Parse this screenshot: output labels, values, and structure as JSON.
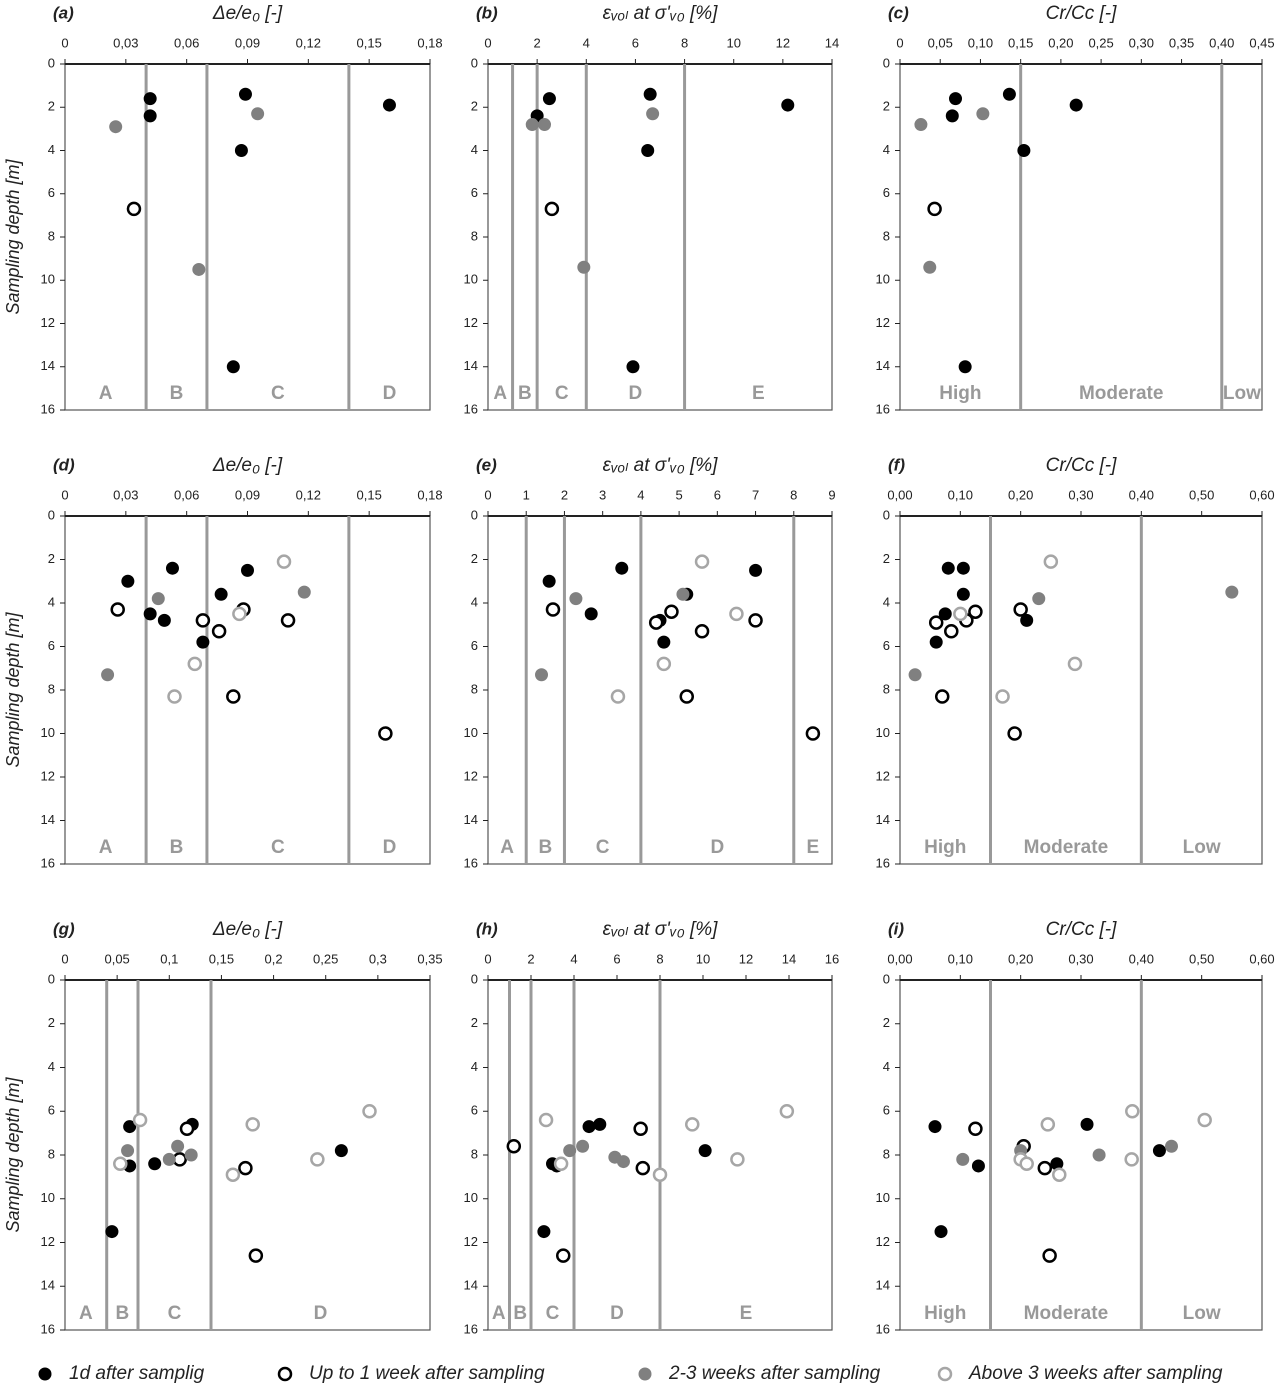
{
  "chart_data": [
    {
      "type": "scatter",
      "panel": "(a)",
      "xlabel": "Δe/e₀ [-]",
      "ylabel": "Sampling depth [m]",
      "invert_y": true,
      "xlim": [
        0,
        0.18
      ],
      "xticks": [
        0,
        {
          "value": 0.03,
          "label": "0,03"
        },
        {
          "value": 0.06,
          "label": "0,06"
        },
        {
          "value": 0.09,
          "label": "0,09"
        },
        {
          "value": 0.12,
          "label": "0,12"
        },
        {
          "value": 0.15,
          "label": "0,15"
        },
        {
          "value": 0.18,
          "label": "0,18"
        }
      ],
      "ylim": [
        0,
        16
      ],
      "yticks": [
        0,
        2,
        4,
        6,
        8,
        10,
        12,
        14,
        16
      ],
      "zone_bounds": [
        0.04,
        0.07,
        0.14
      ],
      "zone_labels": [
        "A",
        "B",
        "C",
        "D"
      ],
      "series": [
        {
          "x": [
            0.042,
            0.042,
            0.089,
            0.087,
            0.16,
            0.083
          ],
          "y": [
            1.6,
            2.4,
            1.4,
            4.0,
            1.9,
            14.0
          ]
        },
        {
          "x": [
            0.034
          ],
          "y": [
            6.7
          ]
        },
        {
          "x": [
            0.025,
            0.066,
            0.095
          ],
          "y": [
            2.9,
            9.5,
            2.3
          ]
        },
        {
          "x": [],
          "y": []
        }
      ]
    },
    {
      "type": "scatter",
      "panel": "(b)",
      "xlabel": "εᵥₒₗ at σ'ᵥ₀ [%]",
      "invert_y": true,
      "xlim": [
        0,
        14
      ],
      "xticks": [
        0,
        2,
        4,
        6,
        8,
        10,
        12,
        14
      ],
      "ylim": [
        0,
        16
      ],
      "yticks": [
        0,
        2,
        4,
        6,
        8,
        10,
        12,
        14,
        16
      ],
      "zone_bounds": [
        1,
        2,
        4,
        8
      ],
      "zone_labels": [
        "A",
        "B",
        "C",
        "D",
        "E"
      ],
      "series": [
        {
          "x": [
            2.5,
            2.0,
            6.6,
            6.5,
            12.2,
            5.9
          ],
          "y": [
            1.6,
            2.4,
            1.4,
            4.0,
            1.9,
            14.0
          ]
        },
        {
          "x": [
            2.6
          ],
          "y": [
            6.7
          ]
        },
        {
          "x": [
            1.8,
            2.3,
            6.7,
            3.9
          ],
          "y": [
            2.8,
            2.8,
            2.3,
            9.4
          ]
        },
        {
          "x": [],
          "y": []
        }
      ]
    },
    {
      "type": "scatter",
      "panel": "(c)",
      "xlabel": "Cr/Cc [-]",
      "invert_y": true,
      "xlim": [
        0,
        0.45
      ],
      "xticks": [
        0,
        {
          "value": 0.05,
          "label": "0,05"
        },
        {
          "value": 0.1,
          "label": "0,10"
        },
        {
          "value": 0.15,
          "label": "0,15"
        },
        {
          "value": 0.2,
          "label": "0,20"
        },
        {
          "value": 0.25,
          "label": "0,25"
        },
        {
          "value": 0.3,
          "label": "0,30"
        },
        {
          "value": 0.35,
          "label": "0,35"
        },
        {
          "value": 0.4,
          "label": "0,40"
        },
        {
          "value": 0.45,
          "label": "0,45"
        }
      ],
      "ylim": [
        0,
        16
      ],
      "yticks": [
        0,
        2,
        4,
        6,
        8,
        10,
        12,
        14,
        16
      ],
      "zone_bounds": [
        0.15,
        0.4
      ],
      "zone_labels": [
        "High",
        "Moderate",
        "Low"
      ],
      "series": [
        {
          "x": [
            0.069,
            0.065,
            0.136,
            0.154,
            0.219,
            0.081
          ],
          "y": [
            1.6,
            2.4,
            1.4,
            4.0,
            1.9,
            14.0
          ]
        },
        {
          "x": [
            0.043
          ],
          "y": [
            6.7
          ]
        },
        {
          "x": [
            0.026,
            0.103,
            0.037
          ],
          "y": [
            2.8,
            2.3,
            9.4
          ]
        },
        {
          "x": [],
          "y": []
        }
      ]
    },
    {
      "type": "scatter",
      "panel": "(d)",
      "xlabel": "Δe/e₀ [-]",
      "ylabel": "Sampling depth [m]",
      "invert_y": true,
      "xlim": [
        0,
        0.18
      ],
      "xticks": [
        0,
        {
          "value": 0.03,
          "label": "0,03"
        },
        {
          "value": 0.06,
          "label": "0,06"
        },
        {
          "value": 0.09,
          "label": "0,09"
        },
        {
          "value": 0.12,
          "label": "0,12"
        },
        {
          "value": 0.15,
          "label": "0,15"
        },
        {
          "value": 0.18,
          "label": "0,18"
        }
      ],
      "ylim": [
        0,
        16
      ],
      "yticks": [
        0,
        2,
        4,
        6,
        8,
        10,
        12,
        14,
        16
      ],
      "zone_bounds": [
        0.04,
        0.07,
        0.14
      ],
      "zone_labels": [
        "A",
        "B",
        "C",
        "D"
      ],
      "series": [
        {
          "x": [
            0.031,
            0.053,
            0.09,
            0.042,
            0.049,
            0.077,
            0.068
          ],
          "y": [
            3.0,
            2.4,
            2.5,
            4.5,
            4.8,
            3.6,
            5.8
          ]
        },
        {
          "x": [
            0.026,
            0.068,
            0.076,
            0.088,
            0.11,
            0.083,
            0.158
          ],
          "y": [
            4.3,
            4.8,
            5.3,
            4.3,
            4.8,
            8.3,
            10.0
          ]
        },
        {
          "x": [
            0.046,
            0.118,
            0.021
          ],
          "y": [
            3.8,
            3.5,
            7.3
          ]
        },
        {
          "x": [
            0.108,
            0.086,
            0.064,
            0.054
          ],
          "y": [
            2.1,
            4.5,
            6.8,
            8.3
          ]
        }
      ]
    },
    {
      "type": "scatter",
      "panel": "(e)",
      "xlabel": "εᵥₒₗ at σ'ᵥ₀ [%]",
      "invert_y": true,
      "xlim": [
        0,
        9
      ],
      "xticks": [
        0,
        1,
        2,
        3,
        4,
        5,
        6,
        7,
        8,
        9
      ],
      "ylim": [
        0,
        16
      ],
      "yticks": [
        0,
        2,
        4,
        6,
        8,
        10,
        12,
        14,
        16
      ],
      "zone_bounds": [
        1,
        2,
        4,
        8
      ],
      "zone_labels": [
        "A",
        "B",
        "C",
        "D",
        "E"
      ],
      "series": [
        {
          "x": [
            1.6,
            3.5,
            7.0,
            2.7,
            5.2,
            4.5,
            4.6
          ],
          "y": [
            3.0,
            2.4,
            2.5,
            4.5,
            3.6,
            4.8,
            5.8
          ]
        },
        {
          "x": [
            1.7,
            4.4,
            4.8,
            5.6,
            7.0,
            5.2,
            8.5
          ],
          "y": [
            4.3,
            4.9,
            4.4,
            5.3,
            4.8,
            8.3,
            10.0
          ]
        },
        {
          "x": [
            2.3,
            1.4,
            5.1
          ],
          "y": [
            3.8,
            7.3,
            3.6
          ]
        },
        {
          "x": [
            5.6,
            6.5,
            4.6,
            3.4
          ],
          "y": [
            2.1,
            4.5,
            6.8,
            8.3
          ]
        }
      ]
    },
    {
      "type": "scatter",
      "panel": "(f)",
      "xlabel": "Cr/Cc [-]",
      "invert_y": true,
      "xlim": [
        0,
        0.6
      ],
      "xticks": [
        {
          "value": 0,
          "label": "0,00"
        },
        {
          "value": 0.1,
          "label": "0,10"
        },
        {
          "value": 0.2,
          "label": "0,20"
        },
        {
          "value": 0.3,
          "label": "0,30"
        },
        {
          "value": 0.4,
          "label": "0,40"
        },
        {
          "value": 0.5,
          "label": "0,50"
        },
        {
          "value": 0.6,
          "label": "0,60"
        }
      ],
      "ylim": [
        0,
        16
      ],
      "yticks": [
        0,
        2,
        4,
        6,
        8,
        10,
        12,
        14,
        16
      ],
      "zone_bounds": [
        0.15,
        0.4
      ],
      "zone_labels": [
        "High",
        "Moderate",
        "Low"
      ],
      "series": [
        {
          "x": [
            0.08,
            0.105,
            0.105,
            0.075,
            0.21,
            0.06
          ],
          "y": [
            2.4,
            2.4,
            3.6,
            4.5,
            4.8,
            5.8
          ]
        },
        {
          "x": [
            0.06,
            0.085,
            0.11,
            0.125,
            0.2,
            0.07,
            0.19
          ],
          "y": [
            4.9,
            5.3,
            4.8,
            4.4,
            4.3,
            8.3,
            10.0
          ]
        },
        {
          "x": [
            0.23,
            0.55,
            0.025
          ],
          "y": [
            3.8,
            3.5,
            7.3
          ]
        },
        {
          "x": [
            0.25,
            0.1,
            0.17,
            0.29
          ],
          "y": [
            2.1,
            4.5,
            8.3,
            6.8
          ]
        }
      ]
    },
    {
      "type": "scatter",
      "panel": "(g)",
      "xlabel": "Δe/e₀ [-]",
      "ylabel": "Sampling depth [m]",
      "invert_y": true,
      "xlim": [
        0,
        0.35
      ],
      "xticks": [
        0,
        {
          "value": 0.05,
          "label": "0,05"
        },
        {
          "value": 0.1,
          "label": "0,1"
        },
        {
          "value": 0.15,
          "label": "0,15"
        },
        {
          "value": 0.2,
          "label": "0,2"
        },
        {
          "value": 0.25,
          "label": "0,25"
        },
        {
          "value": 0.3,
          "label": "0,3"
        },
        {
          "value": 0.35,
          "label": "0,35"
        }
      ],
      "ylim": [
        0,
        16
      ],
      "yticks": [
        0,
        2,
        4,
        6,
        8,
        10,
        12,
        14,
        16
      ],
      "zone_bounds": [
        0.04,
        0.07,
        0.14
      ],
      "zone_labels": [
        "A",
        "B",
        "C",
        "D"
      ],
      "series": [
        {
          "x": [
            0.062,
            0.122,
            0.062,
            0.086,
            0.045,
            0.265
          ],
          "y": [
            6.7,
            6.6,
            8.5,
            8.4,
            11.5,
            7.8
          ]
        },
        {
          "x": [
            0.117,
            0.11,
            0.173,
            0.183
          ],
          "y": [
            6.8,
            8.2,
            8.6,
            12.6
          ]
        },
        {
          "x": [
            0.06,
            0.108,
            0.1,
            0.121
          ],
          "y": [
            7.8,
            7.6,
            8.2,
            8.0
          ]
        },
        {
          "x": [
            0.072,
            0.053,
            0.18,
            0.161,
            0.242,
            0.292
          ],
          "y": [
            6.4,
            8.4,
            6.6,
            8.9,
            8.2,
            6.0
          ]
        }
      ]
    },
    {
      "type": "scatter",
      "panel": "(h)",
      "xlabel": "εᵥₒₗ at σ'ᵥ₀ [%]",
      "invert_y": true,
      "xlim": [
        0,
        16
      ],
      "xticks": [
        0,
        2,
        4,
        6,
        8,
        10,
        12,
        14,
        16
      ],
      "ylim": [
        0,
        16
      ],
      "yticks": [
        0,
        2,
        4,
        6,
        8,
        10,
        12,
        14,
        16
      ],
      "zone_bounds": [
        1,
        2,
        4,
        8
      ],
      "zone_labels": [
        "A",
        "B",
        "C",
        "D",
        "E"
      ],
      "series": [
        {
          "x": [
            4.7,
            5.2,
            3.2,
            3.0,
            2.6,
            10.1
          ],
          "y": [
            6.7,
            6.6,
            8.5,
            8.4,
            11.5,
            7.8
          ]
        },
        {
          "x": [
            1.2,
            7.1,
            7.2,
            3.5
          ],
          "y": [
            7.6,
            6.8,
            8.6,
            12.6
          ]
        },
        {
          "x": [
            3.8,
            4.4,
            5.9,
            6.3
          ],
          "y": [
            7.8,
            7.6,
            8.1,
            8.3
          ]
        },
        {
          "x": [
            2.7,
            3.4,
            9.5,
            8.0,
            11.6,
            13.9
          ],
          "y": [
            6.4,
            8.4,
            6.6,
            8.9,
            8.2,
            6.0
          ]
        }
      ]
    },
    {
      "type": "scatter",
      "panel": "(i)",
      "xlabel": "Cr/Cc [-]",
      "invert_y": true,
      "xlim": [
        0,
        0.6
      ],
      "xticks": [
        {
          "value": 0,
          "label": "0,00"
        },
        {
          "value": 0.1,
          "label": "0,10"
        },
        {
          "value": 0.2,
          "label": "0,20"
        },
        {
          "value": 0.3,
          "label": "0,30"
        },
        {
          "value": 0.4,
          "label": "0,40"
        },
        {
          "value": 0.5,
          "label": "0,50"
        },
        {
          "value": 0.6,
          "label": "0,60"
        }
      ],
      "ylim": [
        0,
        16
      ],
      "yticks": [
        0,
        2,
        4,
        6,
        8,
        10,
        12,
        14,
        16
      ],
      "zone_bounds": [
        0.15,
        0.4
      ],
      "zone_labels": [
        "High",
        "Moderate",
        "Low"
      ],
      "series": [
        {
          "x": [
            0.058,
            0.31,
            0.13,
            0.26,
            0.068,
            0.43
          ],
          "y": [
            6.7,
            6.6,
            8.5,
            8.4,
            11.5,
            7.8
          ]
        },
        {
          "x": [
            0.125,
            0.205,
            0.24,
            0.248
          ],
          "y": [
            6.8,
            7.6,
            8.6,
            12.6
          ]
        },
        {
          "x": [
            0.2,
            0.45,
            0.104,
            0.33
          ],
          "y": [
            7.8,
            7.6,
            8.2,
            8.0
          ]
        },
        {
          "x": [
            0.245,
            0.385,
            0.505,
            0.2,
            0.21,
            0.264,
            0.384
          ],
          "y": [
            6.6,
            6.0,
            6.4,
            8.2,
            8.4,
            8.9,
            8.2
          ]
        }
      ]
    }
  ],
  "legend": [
    {
      "name": "1d after samplig",
      "color": "#000000",
      "filled": true
    },
    {
      "name": "Up to 1 week after sampling",
      "color": "#000000",
      "filled": false
    },
    {
      "name": "2-3 weeks after sampling",
      "color": "#808080",
      "filled": true
    },
    {
      "name": "Above 3 weeks after sampling",
      "color": "#a6a6a6",
      "filled": false
    }
  ]
}
